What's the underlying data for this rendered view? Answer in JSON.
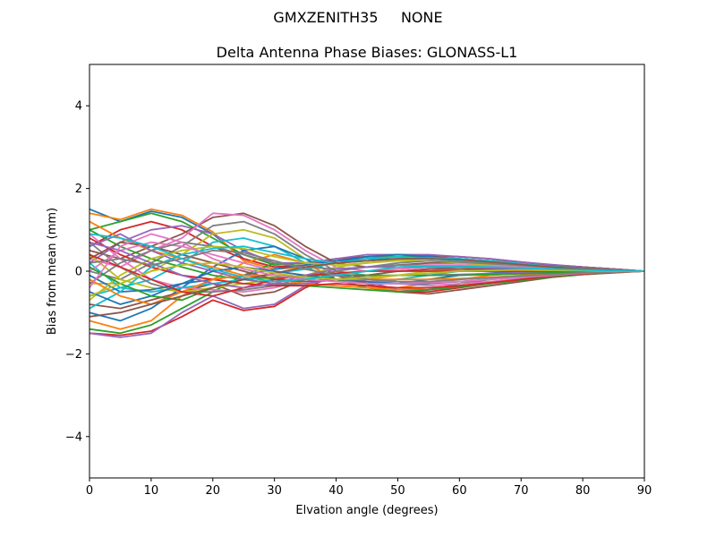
{
  "figure": {
    "suptitle": "GMXZENITH35     NONE"
  },
  "chart_data": {
    "type": "line",
    "title": "Delta Antenna Phase Biases: GLONASS-L1",
    "xlabel": "Elvation angle (degrees)",
    "ylabel": "Bias from mean (mm)",
    "xlim": [
      0,
      90
    ],
    "ylim": [
      -5,
      5
    ],
    "xticks": [
      0,
      10,
      20,
      30,
      40,
      50,
      60,
      70,
      80,
      90
    ],
    "yticks": [
      -4,
      -2,
      0,
      2,
      4
    ],
    "ytick_labels": [
      "−4",
      "−2",
      "0",
      "2",
      "4"
    ],
    "grid": false,
    "legend": "none",
    "x": [
      0,
      5,
      10,
      15,
      20,
      25,
      30,
      35,
      40,
      45,
      50,
      55,
      60,
      65,
      70,
      75,
      80,
      85,
      90
    ],
    "color_cycle": [
      "#1f77b4",
      "#ff7f0e",
      "#2ca02c",
      "#d62728",
      "#9467bd",
      "#8c564b",
      "#e377c2",
      "#7f7f7f",
      "#bcbd22",
      "#17becf"
    ],
    "series": [
      {
        "values": [
          1.5,
          1.2,
          1.45,
          1.3,
          0.9,
          0.3,
          0.1,
          0.15,
          0.25,
          0.3,
          0.3,
          0.3,
          0.3,
          0.25,
          0.2,
          0.15,
          0.1,
          0.05,
          0
        ]
      },
      {
        "values": [
          1.4,
          1.25,
          1.5,
          1.35,
          0.95,
          0.25,
          0.05,
          0.1,
          0.2,
          0.25,
          0.3,
          0.3,
          0.28,
          0.25,
          0.2,
          0.15,
          0.1,
          0.05,
          0
        ]
      },
      {
        "values": [
          1.0,
          1.2,
          1.4,
          1.2,
          0.8,
          0.4,
          0.15,
          0.2,
          0.3,
          0.35,
          0.35,
          0.35,
          0.3,
          0.25,
          0.2,
          0.15,
          0.1,
          0.05,
          0
        ]
      },
      {
        "values": [
          0.6,
          1.0,
          1.2,
          1.0,
          0.6,
          0.3,
          0.1,
          0.15,
          0.3,
          0.35,
          0.4,
          0.38,
          0.35,
          0.3,
          0.22,
          0.15,
          0.1,
          0.05,
          0
        ]
      },
      {
        "values": [
          0.2,
          0.7,
          1.0,
          1.1,
          0.9,
          0.5,
          0.2,
          0.2,
          0.3,
          0.4,
          0.4,
          0.4,
          0.35,
          0.3,
          0.22,
          0.16,
          0.1,
          0.05,
          0
        ]
      },
      {
        "values": [
          0.5,
          0.3,
          0.6,
          0.9,
          1.3,
          1.4,
          1.1,
          0.6,
          0.2,
          0.1,
          0.15,
          0.2,
          0.2,
          0.2,
          0.15,
          0.12,
          0.08,
          0.04,
          0
        ]
      },
      {
        "values": [
          0.3,
          0.1,
          0.5,
          0.8,
          1.4,
          1.35,
          1.0,
          0.5,
          0.1,
          0.0,
          0.05,
          0.1,
          0.15,
          0.15,
          0.12,
          0.1,
          0.06,
          0.03,
          0
        ]
      },
      {
        "values": [
          0.0,
          -0.2,
          0.2,
          0.6,
          1.1,
          1.2,
          0.9,
          0.4,
          0.0,
          -0.1,
          0.0,
          0.05,
          0.1,
          0.1,
          0.1,
          0.08,
          0.05,
          0.03,
          0
        ]
      },
      {
        "values": [
          -0.3,
          -0.3,
          0.0,
          0.4,
          0.9,
          1.0,
          0.8,
          0.3,
          -0.1,
          -0.2,
          -0.1,
          0.0,
          0.05,
          0.08,
          0.08,
          0.06,
          0.04,
          0.02,
          0
        ]
      },
      {
        "values": [
          -0.6,
          -0.4,
          -0.2,
          0.2,
          0.7,
          0.8,
          0.6,
          0.2,
          -0.2,
          -0.3,
          -0.2,
          -0.1,
          0.0,
          0.05,
          0.05,
          0.05,
          0.03,
          0.02,
          0
        ]
      },
      {
        "values": [
          -1.0,
          -1.2,
          -0.9,
          -0.4,
          0.1,
          0.5,
          0.6,
          0.3,
          -0.1,
          -0.3,
          -0.3,
          -0.2,
          -0.1,
          -0.05,
          0.0,
          0.0,
          0.0,
          0.0,
          0
        ]
      },
      {
        "values": [
          -1.2,
          -1.4,
          -1.2,
          -0.6,
          -0.2,
          0.2,
          0.4,
          0.2,
          -0.2,
          -0.4,
          -0.4,
          -0.3,
          -0.2,
          -0.1,
          -0.05,
          -0.02,
          0.0,
          0.0,
          0
        ]
      },
      {
        "values": [
          -1.4,
          -1.5,
          -1.3,
          -0.9,
          -0.5,
          -0.1,
          0.2,
          0.1,
          -0.2,
          -0.4,
          -0.5,
          -0.45,
          -0.3,
          -0.2,
          -0.1,
          -0.05,
          -0.02,
          0.0,
          0
        ]
      },
      {
        "values": [
          -1.5,
          -1.55,
          -1.45,
          -1.1,
          -0.7,
          -0.95,
          -0.85,
          -0.4,
          -0.1,
          -0.3,
          -0.5,
          -0.5,
          -0.4,
          -0.3,
          -0.2,
          -0.12,
          -0.06,
          -0.03,
          0
        ]
      },
      {
        "values": [
          -1.5,
          -1.6,
          -1.5,
          -1.0,
          -0.6,
          -0.9,
          -0.8,
          -0.35,
          -0.05,
          -0.25,
          -0.45,
          -0.45,
          -0.35,
          -0.28,
          -0.18,
          -0.1,
          -0.05,
          -0.02,
          0
        ]
      },
      {
        "values": [
          -0.8,
          -0.9,
          -0.7,
          -0.5,
          -0.3,
          -0.6,
          -0.5,
          -0.2,
          -0.1,
          -0.3,
          -0.5,
          -0.55,
          -0.45,
          -0.35,
          -0.25,
          -0.15,
          -0.08,
          -0.04,
          0
        ]
      },
      {
        "values": [
          0.9,
          0.3,
          -0.2,
          -0.4,
          -0.45,
          -0.5,
          -0.4,
          -0.2,
          -0.1,
          -0.2,
          -0.3,
          -0.35,
          -0.3,
          -0.25,
          -0.18,
          -0.1,
          -0.06,
          -0.03,
          0
        ]
      },
      {
        "values": [
          0.7,
          0.1,
          -0.3,
          -0.5,
          -0.5,
          -0.45,
          -0.35,
          -0.15,
          0.0,
          0.1,
          0.15,
          0.15,
          0.12,
          0.1,
          0.08,
          0.05,
          0.03,
          0.01,
          0
        ]
      },
      {
        "values": [
          0.4,
          -0.2,
          -0.4,
          -0.5,
          -0.4,
          -0.3,
          -0.2,
          -0.1,
          0.1,
          0.2,
          0.25,
          0.25,
          0.2,
          0.15,
          0.1,
          0.07,
          0.04,
          0.02,
          0
        ]
      },
      {
        "values": [
          0.2,
          -0.4,
          -0.5,
          -0.4,
          -0.3,
          -0.2,
          -0.05,
          0.05,
          0.2,
          0.3,
          0.35,
          0.3,
          0.25,
          0.2,
          0.14,
          0.09,
          0.05,
          0.02,
          0
        ]
      },
      {
        "values": [
          -0.1,
          -0.5,
          -0.45,
          -0.3,
          -0.2,
          -0.1,
          0.05,
          0.15,
          0.25,
          0.35,
          0.4,
          0.35,
          0.3,
          0.22,
          0.15,
          0.1,
          0.05,
          0.02,
          0
        ]
      },
      {
        "values": [
          1.2,
          0.8,
          0.5,
          0.3,
          0.1,
          -0.1,
          -0.2,
          -0.3,
          -0.35,
          -0.4,
          -0.45,
          -0.4,
          -0.35,
          -0.28,
          -0.2,
          -0.13,
          -0.07,
          -0.03,
          0
        ]
      },
      {
        "values": [
          1.0,
          0.6,
          0.3,
          0.1,
          -0.1,
          -0.2,
          -0.3,
          -0.35,
          -0.4,
          -0.45,
          -0.5,
          -0.45,
          -0.38,
          -0.3,
          -0.22,
          -0.14,
          -0.08,
          -0.03,
          0
        ]
      },
      {
        "values": [
          0.8,
          0.4,
          0.1,
          -0.1,
          -0.2,
          -0.3,
          -0.35,
          -0.35,
          -0.3,
          -0.35,
          -0.4,
          -0.4,
          -0.35,
          -0.28,
          -0.2,
          -0.12,
          -0.07,
          -0.03,
          0
        ]
      },
      {
        "values": [
          0.6,
          0.9,
          0.5,
          0.2,
          0.0,
          -0.2,
          -0.3,
          -0.3,
          -0.2,
          -0.15,
          -0.1,
          -0.1,
          -0.08,
          -0.06,
          -0.04,
          -0.03,
          -0.02,
          -0.01,
          0
        ]
      },
      {
        "values": [
          0.3,
          0.7,
          0.6,
          0.4,
          0.2,
          0.0,
          -0.2,
          -0.25,
          -0.2,
          -0.1,
          0.0,
          0.05,
          0.05,
          0.05,
          0.04,
          0.03,
          0.02,
          0.01,
          0
        ]
      },
      {
        "values": [
          0.0,
          0.5,
          0.7,
          0.6,
          0.4,
          0.2,
          0.0,
          -0.1,
          -0.1,
          0.0,
          0.1,
          0.15,
          0.15,
          0.12,
          0.1,
          0.07,
          0.04,
          0.02,
          0
        ]
      },
      {
        "values": [
          -0.3,
          0.2,
          0.5,
          0.7,
          0.6,
          0.4,
          0.2,
          0.1,
          0.05,
          0.1,
          0.2,
          0.25,
          0.22,
          0.18,
          0.14,
          0.09,
          0.05,
          0.02,
          0
        ]
      },
      {
        "values": [
          -0.7,
          -0.1,
          0.3,
          0.5,
          0.6,
          0.55,
          0.35,
          0.2,
          0.15,
          0.2,
          0.28,
          0.3,
          0.28,
          0.22,
          0.16,
          0.1,
          0.05,
          0.02,
          0
        ]
      },
      {
        "values": [
          -0.9,
          -0.5,
          0.1,
          0.4,
          0.55,
          0.6,
          0.45,
          0.3,
          0.2,
          0.25,
          0.3,
          0.32,
          0.3,
          0.25,
          0.18,
          0.11,
          0.06,
          0.02,
          0
        ]
      },
      {
        "values": [
          -0.5,
          -0.8,
          -0.6,
          -0.3,
          0.0,
          0.1,
          0.0,
          -0.1,
          -0.2,
          -0.25,
          -0.3,
          -0.3,
          -0.25,
          -0.2,
          -0.15,
          -0.1,
          -0.05,
          -0.02,
          0
        ]
      },
      {
        "values": [
          -0.2,
          -0.6,
          -0.8,
          -0.5,
          -0.2,
          -0.1,
          -0.1,
          -0.15,
          -0.2,
          -0.2,
          -0.2,
          -0.2,
          -0.18,
          -0.15,
          -0.1,
          -0.07,
          -0.04,
          -0.02,
          0
        ]
      },
      {
        "values": [
          0.1,
          -0.3,
          -0.6,
          -0.7,
          -0.4,
          -0.2,
          -0.15,
          -0.1,
          -0.1,
          -0.1,
          -0.1,
          -0.1,
          -0.1,
          -0.08,
          -0.06,
          -0.04,
          -0.02,
          -0.01,
          0
        ]
      },
      {
        "values": [
          0.4,
          0.1,
          -0.2,
          -0.5,
          -0.6,
          -0.4,
          -0.2,
          -0.1,
          -0.05,
          0.0,
          0.0,
          0.0,
          0.0,
          0.0,
          0.0,
          0.0,
          0.0,
          0.0,
          0
        ]
      },
      {
        "values": [
          0.7,
          0.5,
          0.2,
          -0.1,
          -0.3,
          -0.4,
          -0.3,
          -0.1,
          0.05,
          0.1,
          0.1,
          0.1,
          0.1,
          0.08,
          0.06,
          0.04,
          0.02,
          0.01,
          0
        ]
      },
      {
        "values": [
          -1.1,
          -1.0,
          -0.8,
          -0.6,
          -0.4,
          -0.2,
          -0.05,
          0.1,
          0.2,
          0.25,
          0.3,
          0.3,
          0.28,
          0.22,
          0.16,
          0.1,
          0.05,
          0.02,
          0
        ]
      },
      {
        "values": [
          -0.4,
          0.6,
          0.9,
          0.7,
          0.3,
          0.05,
          -0.1,
          -0.2,
          -0.25,
          -0.3,
          -0.3,
          -0.28,
          -0.25,
          -0.2,
          -0.15,
          -0.1,
          -0.05,
          -0.02,
          0
        ]
      },
      {
        "values": [
          0.2,
          0.3,
          0.15,
          0.3,
          0.5,
          0.45,
          0.25,
          0.05,
          -0.1,
          -0.2,
          -0.25,
          -0.25,
          -0.2,
          -0.16,
          -0.12,
          -0.08,
          -0.04,
          -0.02,
          0
        ]
      },
      {
        "values": [
          -0.6,
          -0.3,
          0.0,
          0.15,
          0.2,
          0.1,
          -0.05,
          -0.15,
          -0.2,
          -0.15,
          -0.1,
          -0.05,
          0.0,
          0.02,
          0.03,
          0.02,
          0.01,
          0.0,
          0
        ]
      },
      {
        "values": [
          0.9,
          0.8,
          0.6,
          0.3,
          0.05,
          -0.15,
          -0.25,
          -0.2,
          -0.1,
          0.0,
          0.1,
          0.12,
          0.12,
          0.1,
          0.08,
          0.05,
          0.03,
          0.01,
          0
        ]
      }
    ]
  }
}
